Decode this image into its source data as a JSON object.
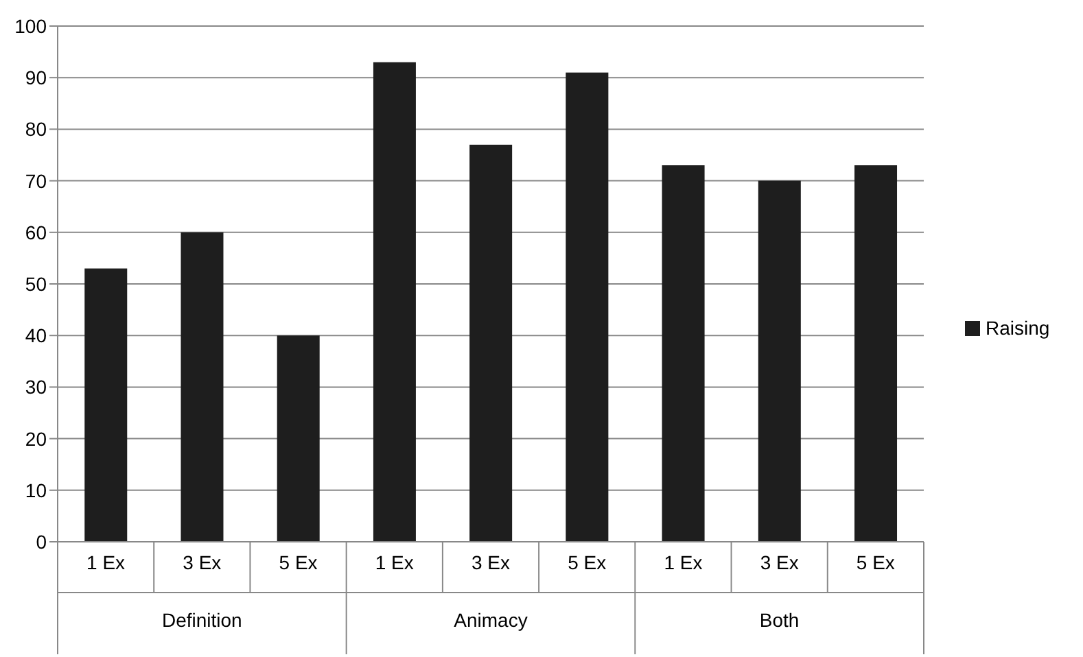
{
  "chart_data": {
    "type": "bar",
    "categories": [
      "1 Ex",
      "3 Ex",
      "5 Ex",
      "1 Ex",
      "3 Ex",
      "5 Ex",
      "1 Ex",
      "3 Ex",
      "5 Ex"
    ],
    "series": [
      {
        "name": "Raising",
        "color": "#1e1e1e",
        "values": [
          53,
          60,
          40,
          93,
          77,
          91,
          73,
          70,
          73
        ]
      }
    ],
    "ylim": [
      0,
      100
    ],
    "yticks": [
      0,
      10,
      20,
      30,
      40,
      50,
      60,
      70,
      80,
      90,
      100
    ],
    "grid": "y",
    "legend": "right",
    "annotations": [
      "Definition",
      "Animacy",
      "Both"
    ]
  }
}
